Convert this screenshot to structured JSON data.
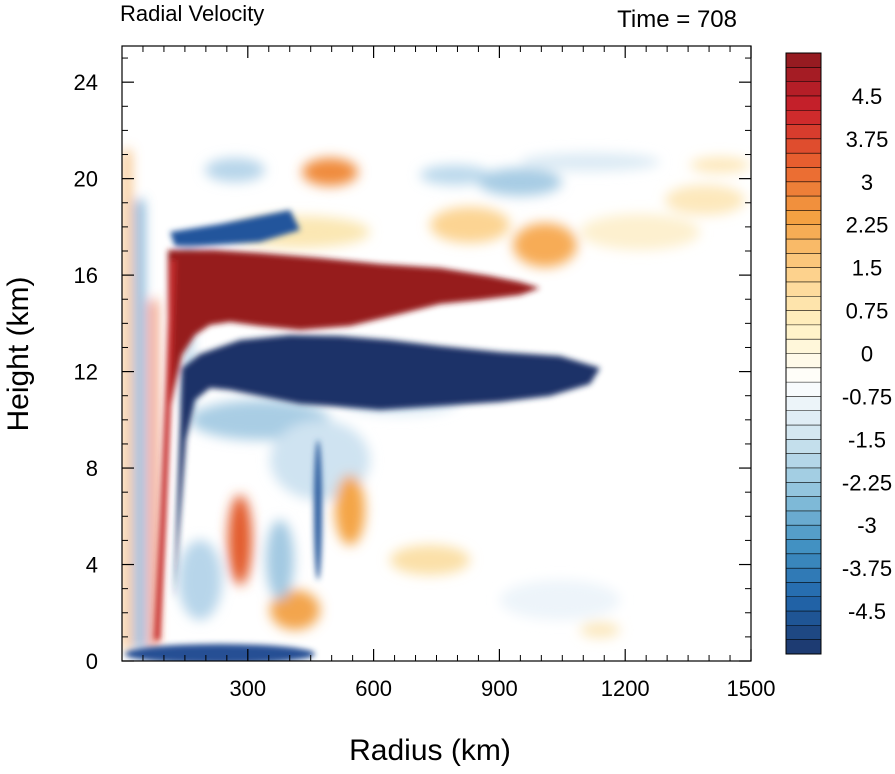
{
  "chart_data": {
    "type": "heatmap",
    "title_left": "Radial Velocity",
    "title_right": "Time = 708",
    "xlabel": "Radius (km)",
    "ylabel": "Height (km)",
    "xlim": [
      0,
      1500
    ],
    "ylim": [
      0,
      25.5
    ],
    "x_ticks": [
      300,
      600,
      900,
      1200,
      1500
    ],
    "y_ticks": [
      0,
      4,
      8,
      12,
      16,
      20,
      24
    ],
    "colorbar": {
      "min": -5.25,
      "max": 5.25,
      "step": 0.25,
      "labels": [
        "4.5",
        "3.75",
        "3",
        "2.25",
        "1.5",
        "0.75",
        "0",
        "-0.75",
        "-1.5",
        "-2.25",
        "-3",
        "-3.75",
        "-4.5"
      ],
      "colors_low_to_high": [
        "#1c3569",
        "#2166ac",
        "#4393c3",
        "#92c5de",
        "#d1e5f0",
        "#ffffff",
        "#fff2c4",
        "#fdd08a",
        "#f4a041",
        "#e8602f",
        "#c9202b",
        "#8e1a1f"
      ]
    },
    "features": [
      {
        "name": "upper-outflow-max",
        "x": [
          120,
          1040
        ],
        "y": [
          13.5,
          16.8
        ],
        "value": 5.5
      },
      {
        "name": "upper-level-inflow",
        "x": [
          120,
          620
        ],
        "y": [
          10.7,
          13.0
        ],
        "value": -5.5
      },
      {
        "name": "low-level-inflow",
        "x": [
          80,
          480
        ],
        "y": [
          0,
          0.6
        ],
        "value": -5.0
      },
      {
        "name": "upper-outflow-layer",
        "x": [
          400,
          1500
        ],
        "y": [
          16.5,
          21.0
        ],
        "value": 2.0
      }
    ]
  }
}
